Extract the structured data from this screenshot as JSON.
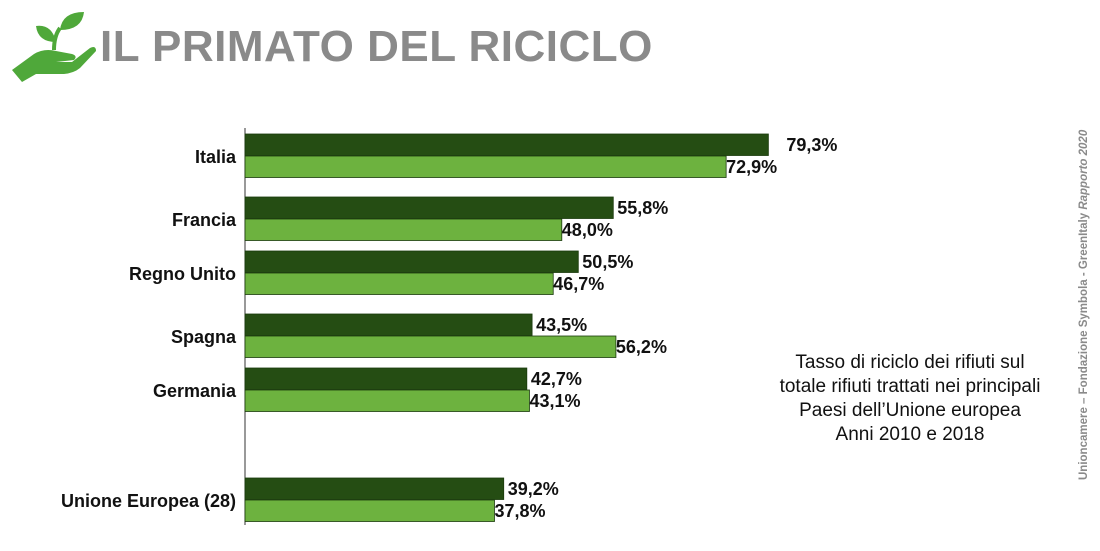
{
  "title": "IL PRIMATO DEL RICICLO",
  "description_lines": [
    "Tasso di riciclo dei rifiuti sul",
    "totale rifiuti trattati nei principali",
    "Paesi dell’Unione europea",
    "Anni 2010 e 2018"
  ],
  "source": {
    "text": "Unioncamere – Fondazione Symbola - GreenItaly ",
    "report": "Rapporto 2020"
  },
  "logo": {
    "icon": "hand-holding-sprout-icon",
    "color": "#4fa83a"
  },
  "colors": {
    "dark": "#254d13",
    "light": "#6db23f",
    "title": "#8a8a8a"
  },
  "chart_data": {
    "type": "bar",
    "orientation": "horizontal",
    "categories": [
      "Italia",
      "Francia",
      "Regno Unito",
      "Spagna",
      "Germania",
      "Unione Europea (28)"
    ],
    "series": [
      {
        "values": [
          79.3,
          55.8,
          50.5,
          43.5,
          42.7,
          39.2
        ],
        "color": "#254d13"
      },
      {
        "values": [
          72.9,
          48.0,
          46.7,
          56.2,
          43.1,
          37.8
        ],
        "color": "#6db23f"
      }
    ],
    "value_labels": [
      [
        "79,3%",
        "55,8%",
        "50,5%",
        "43,5%",
        "42,7%",
        "39,2%"
      ],
      [
        "72,9%",
        "48,0%",
        "46,7%",
        "56,2%",
        "43,1%",
        "37,8%"
      ]
    ],
    "xlim": [
      0,
      100
    ],
    "grid": false,
    "title": "",
    "xlabel": "",
    "ylabel": ""
  }
}
